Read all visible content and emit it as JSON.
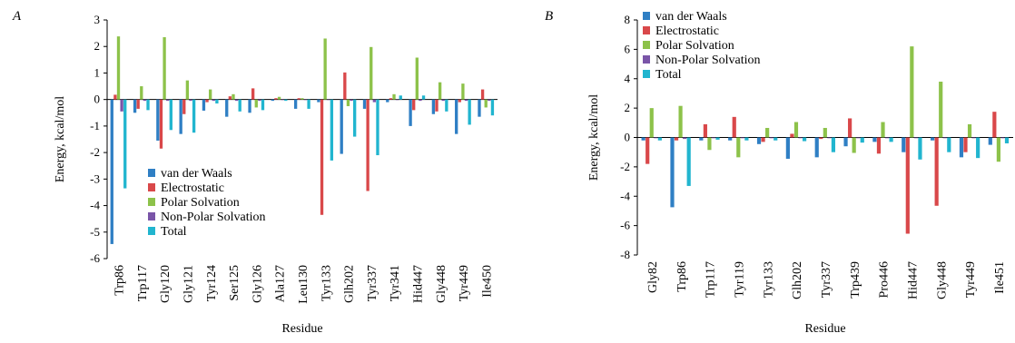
{
  "panels": [
    {
      "letter": "A"
    },
    {
      "letter": "B"
    }
  ],
  "colors": {
    "van der Waals": "#2f7fc4",
    "Electrostatic": "#d9484a",
    "Polar Solvation": "#8dc24a",
    "Non-Polar Solvation": "#7a55a8",
    "Total": "#21b5cf"
  },
  "chart_data": [
    {
      "type": "bar",
      "title": "",
      "xlabel": "Residue",
      "ylabel": "Energy, kcal/mol",
      "ylim": [
        -6,
        3
      ],
      "yticks": [
        -6,
        -5,
        -4,
        -3,
        -2,
        -1,
        0,
        1,
        2,
        3
      ],
      "grid": false,
      "legend_position": "bottom-center",
      "categories": [
        "Trp86",
        "Trp117",
        "Gly120",
        "Gly121",
        "Tyr124",
        "Ser125",
        "Gly126",
        "Ala127",
        "Leu130",
        "Tyr133",
        "Glh202",
        "Tyr337",
        "Tyr341",
        "Hid447",
        "Gly448",
        "Tyr449",
        "Ile450"
      ],
      "bar_groups": [
        [
          -5.45,
          0.18,
          2.38,
          -0.45,
          -3.35
        ],
        [
          -0.5,
          -0.35,
          0.5,
          -0.05,
          -0.4
        ],
        [
          -1.55,
          -1.85,
          2.35,
          -0.05,
          -1.15
        ],
        [
          -1.3,
          -0.55,
          0.72,
          -0.05,
          -1.25
        ],
        [
          -0.42,
          -0.1,
          0.38,
          -0.05,
          -0.15
        ],
        [
          -0.65,
          0.12,
          0.2,
          -0.05,
          -0.45
        ],
        [
          -0.5,
          0.42,
          -0.3,
          -0.05,
          -0.4
        ],
        [
          -0.05,
          0.05,
          0.1,
          -0.02,
          -0.05
        ],
        [
          -0.35,
          0.05,
          0.05,
          -0.02,
          -0.35
        ],
        [
          -0.1,
          -4.35,
          2.3,
          -0.02,
          -2.3
        ],
        [
          -2.05,
          1.02,
          -0.25,
          -0.05,
          -1.4
        ],
        [
          -0.35,
          -3.45,
          1.98,
          -0.1,
          -2.1
        ],
        [
          -0.1,
          0.05,
          0.2,
          -0.02,
          0.15
        ],
        [
          -1.0,
          -0.4,
          1.58,
          -0.05,
          0.15
        ],
        [
          -0.55,
          -0.45,
          0.65,
          -0.05,
          -0.45
        ],
        [
          -1.3,
          -0.1,
          0.6,
          -0.05,
          -0.95
        ],
        [
          -0.65,
          0.38,
          -0.3,
          -0.05,
          -0.6
        ]
      ],
      "series": [
        {
          "name": "van der Waals"
        },
        {
          "name": "Electrostatic"
        },
        {
          "name": "Polar Solvation"
        },
        {
          "name": "Non-Polar Solvation"
        },
        {
          "name": "Total"
        }
      ]
    },
    {
      "type": "bar",
      "title": "",
      "xlabel": "Residue",
      "ylabel": "Energy, kcal/mol",
      "ylim": [
        -8,
        8
      ],
      "yticks": [
        -8,
        -6,
        -4,
        -2,
        0,
        2,
        4,
        6,
        8
      ],
      "grid": false,
      "legend_position": "top-left",
      "categories": [
        "Gly82",
        "Trp86",
        "Trp117",
        "Tyr119",
        "Tyr133",
        "Glh202",
        "Tyr337",
        "Trp439",
        "Pro446",
        "Hid447",
        "Gly448",
        "Tyr449",
        "Ile451"
      ],
      "visible_tick_labels": [
        "Gly82",
        "Trp86",
        "Trp117",
        "Tyr119",
        "Tyr133",
        "Glh202",
        "Tyr337",
        "Trp439",
        "Pro446",
        "Hid447",
        "Gly448",
        "Tyr449",
        "Ile451"
      ],
      "bar_groups": [
        [
          -0.2,
          -1.8,
          2.0,
          -0.05,
          -0.2
        ],
        [
          -4.75,
          -0.2,
          2.15,
          -0.1,
          -3.3
        ],
        [
          -0.2,
          0.9,
          -0.85,
          -0.05,
          -0.15
        ],
        [
          -0.2,
          1.4,
          -1.35,
          -0.05,
          -0.2
        ],
        [
          -0.45,
          -0.3,
          0.65,
          -0.05,
          -0.2
        ],
        [
          -1.45,
          0.25,
          1.05,
          -0.05,
          -0.25
        ],
        [
          -1.35,
          -0.1,
          0.65,
          -0.05,
          -1.0
        ],
        [
          -0.6,
          1.3,
          -1.05,
          -0.05,
          -0.35
        ],
        [
          -0.3,
          -1.1,
          1.05,
          -0.05,
          -0.3
        ],
        [
          -1.0,
          -6.55,
          6.2,
          -0.05,
          -1.5
        ],
        [
          -0.2,
          -4.65,
          3.8,
          -0.05,
          -1.0
        ],
        [
          -1.35,
          -1.0,
          0.9,
          -0.05,
          -1.4
        ],
        [
          -0.5,
          1.75,
          -1.65,
          -0.05,
          -0.4
        ]
      ],
      "series": [
        {
          "name": "van der Waals"
        },
        {
          "name": "Electrostatic"
        },
        {
          "name": "Polar Solvation"
        },
        {
          "name": "Non-Polar Solvation"
        },
        {
          "name": "Total"
        }
      ]
    }
  ]
}
